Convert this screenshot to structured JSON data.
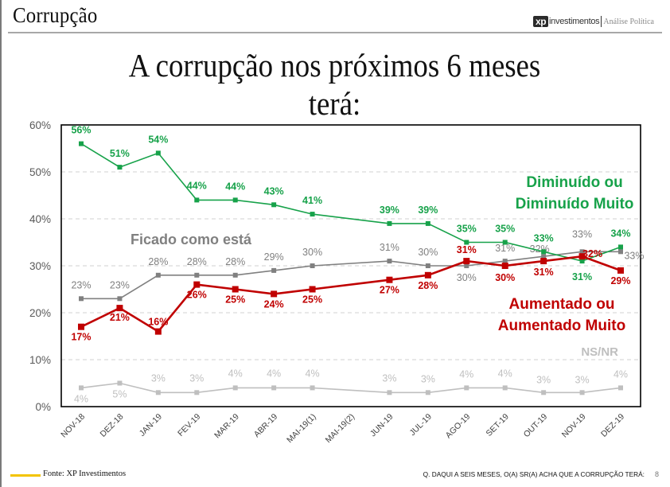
{
  "header": {
    "section_title": "Corrupção",
    "brand_logo": "xp",
    "brand_name": "investimentos",
    "brand_sub": "Análise Política"
  },
  "footer": {
    "source": "Fonte: XP Investimentos",
    "question": "Q. DAQUI A SEIS MESES, O(A) SR(A) ACHA QUE A CORRUPÇÃO TERÁ:",
    "page_number": "8",
    "accent_color": "#F3C400"
  },
  "chart_data": {
    "type": "line",
    "title": "A corrupção nos próximos 6 meses terá:",
    "xlabel": "",
    "ylabel": "",
    "ylim": [
      0,
      60
    ],
    "yticks": [
      "0%",
      "10%",
      "20%",
      "30%",
      "40%",
      "50%",
      "60%"
    ],
    "ytick_values": [
      0,
      10,
      20,
      30,
      40,
      50,
      60
    ],
    "grid": true,
    "categories": [
      "NOV-18",
      "DEZ-18",
      "JAN-19",
      "FEV-19",
      "MAR-19",
      "ABR-19",
      "MAI-19(1)",
      "MAI-19(2)",
      "JUN-19",
      "JUL-19",
      "AGO-19",
      "SET-19",
      "OUT-19",
      "NOV-19",
      "DEZ-19"
    ],
    "series": [
      {
        "name": "Diminuído ou Diminuído Muito",
        "legend_lines": [
          "Diminuído ou",
          "Diminuído Muito"
        ],
        "color": "#17A24A",
        "values": [
          56,
          51,
          54,
          44,
          44,
          43,
          41,
          null,
          39,
          39,
          35,
          35,
          33,
          31,
          34
        ],
        "labels": [
          "56%",
          "51%",
          "54%",
          "44%",
          "44%",
          "43%",
          "41%",
          null,
          "39%",
          "39%",
          "35%",
          "35%",
          "33%",
          "31%",
          "34%"
        ]
      },
      {
        "name": "Ficado como está",
        "legend_lines": [
          "Ficado como está"
        ],
        "color": "#808080",
        "values": [
          23,
          23,
          28,
          28,
          28,
          29,
          30,
          null,
          31,
          30,
          30,
          31,
          32,
          33,
          33
        ],
        "labels": [
          "23%",
          "23%",
          "28%",
          "28%",
          "28%",
          "29%",
          "30%",
          null,
          "31%",
          "30%",
          "30%",
          "31%",
          "32%",
          "33%",
          "33%"
        ]
      },
      {
        "name": "Aumentado ou Aumentado Muito",
        "legend_lines": [
          "Aumentado ou",
          "Aumentado Muito"
        ],
        "color": "#C00000",
        "values": [
          17,
          21,
          16,
          26,
          25,
          24,
          25,
          null,
          27,
          28,
          31,
          30,
          31,
          32,
          29
        ],
        "labels": [
          "17%",
          "21%",
          "16%",
          "26%",
          "25%",
          "24%",
          "25%",
          null,
          "27%",
          "28%",
          "31%",
          "30%",
          "31%",
          "32%",
          "29%"
        ]
      },
      {
        "name": "NS/NR",
        "legend_lines": [
          "NS/NR"
        ],
        "color": "#BFBFBF",
        "values": [
          4,
          5,
          3,
          3,
          4,
          4,
          4,
          null,
          3,
          3,
          4,
          4,
          3,
          3,
          4
        ],
        "labels": [
          "4%",
          "5%",
          "3%",
          "3%",
          "4%",
          "4%",
          "4%",
          null,
          "3%",
          "3%",
          "4%",
          "4%",
          "3%",
          "3%",
          "4%"
        ]
      }
    ],
    "legend": "inline-labels"
  }
}
